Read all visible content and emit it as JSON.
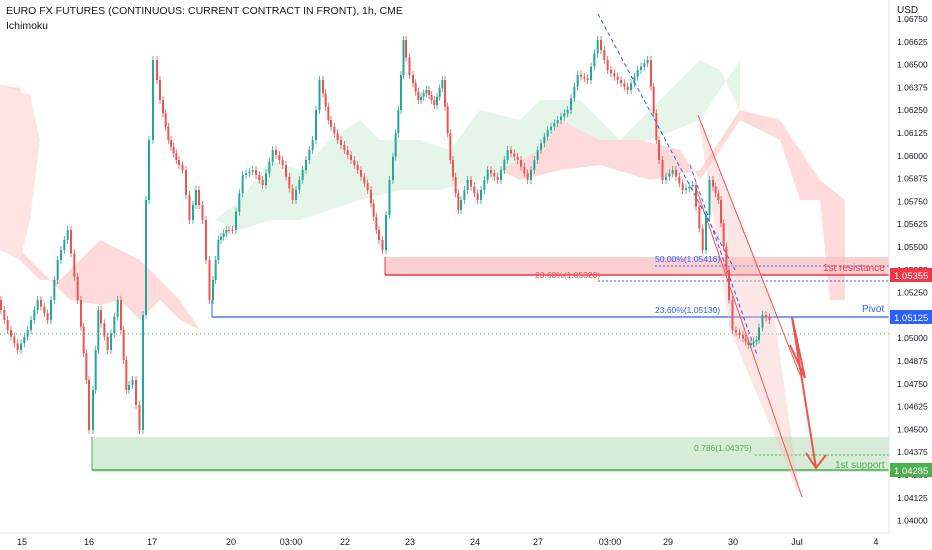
{
  "header": {
    "title": "EURO FX FUTURES (CONTINUOUS: CURRENT CONTRACT IN FRONT), 1h, CME",
    "indicator": "Ichimoku",
    "currency": "USD"
  },
  "chart_data": {
    "type": "candlestick",
    "ylim": [
      1.04,
      1.068
    ],
    "y_ticks": [
      "1.06750",
      "1.06625",
      "1.06500",
      "1.06375",
      "1.06250",
      "1.06125",
      "1.06000",
      "1.05875",
      "1.05750",
      "1.05625",
      "1.05500",
      "1.05375",
      "1.05250",
      "1.05125",
      "1.05000",
      "1.04875",
      "1.04750",
      "1.04625",
      "1.04500",
      "1.04375",
      "1.04250",
      "1.04125",
      "1.04000"
    ],
    "x_ticks": [
      "15",
      "16",
      "17",
      "20",
      "03:00",
      "22",
      "23",
      "24",
      "27",
      "03:00",
      "29",
      "30",
      "Jul",
      "4"
    ],
    "levels": {
      "resistance": {
        "label": "1st resistance",
        "price": "1.05355",
        "value": 1.05355
      },
      "pivot": {
        "label": "Pivot",
        "price": "1.05125",
        "value": 1.05125
      },
      "support": {
        "label": "1st support",
        "price": "1.04285",
        "value": 1.04285
      }
    },
    "fib_labels": {
      "fib50": "50.00%(1.05416)",
      "fib236_top": "23.60%(1.05320)",
      "fib236_mid": "23.60%(1.05130)",
      "fib786": "0.786(1.04375)"
    },
    "colors": {
      "up": "#26a69a",
      "down": "#ef5350",
      "resistance": "#f23645",
      "pivot": "#2962ff",
      "support": "#4caf50"
    }
  }
}
